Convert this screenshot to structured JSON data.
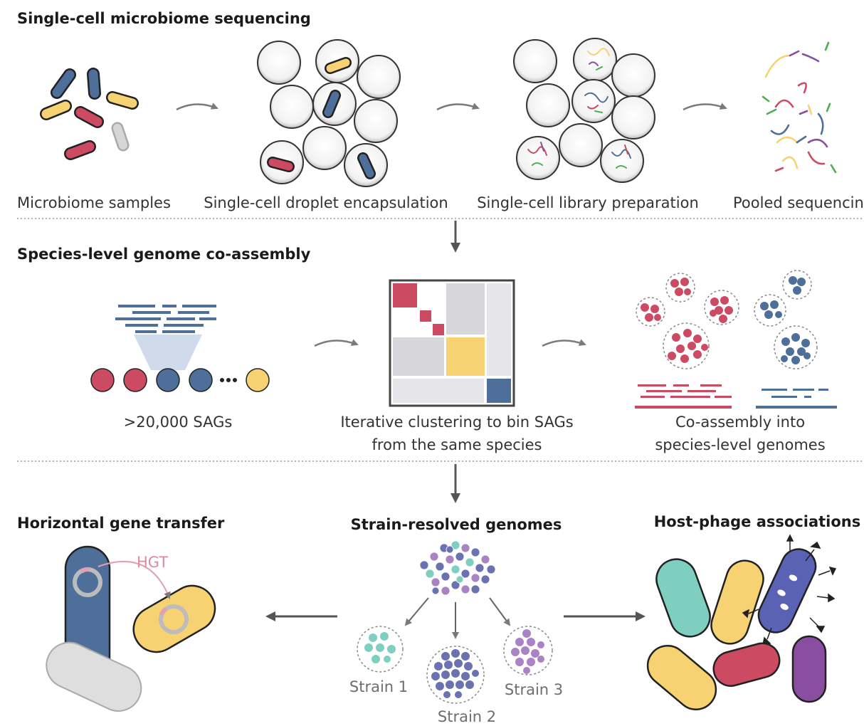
{
  "colors": {
    "blue": "#4d6f9a",
    "red": "#cc4b63",
    "yellow": "#f6d272",
    "gray": "#d6d6d6",
    "teal": "#7fcfc0",
    "strain_blue": "#6a72b0",
    "purple": "#a983c4",
    "violet": "#8a4ea0",
    "phage_body": "#5a63b3",
    "hgt_pink": "#e3a0b3"
  },
  "section1": {
    "title": "Single-cell microbiome sequencing",
    "steps": [
      "Microbiome samples",
      "Single-cell droplet encapsulation",
      "Single-cell library preparation",
      "Pooled sequencing"
    ]
  },
  "section2": {
    "title": "Species-level genome co-assembly",
    "sags_label": ">20,000 SAGs",
    "clustering_label": [
      "Iterative clustering to bin SAGs",
      "from the same species"
    ],
    "coassembly_label": [
      "Co-assembly into",
      "species-level genomes"
    ]
  },
  "section3": {
    "hgt_title": "Horizontal gene transfer",
    "hgt_label": "HGT",
    "strain_title": "Strain-resolved genomes",
    "strains": [
      "Strain 1",
      "Strain 2",
      "Strain 3"
    ],
    "phage_title": "Host-phage associations"
  }
}
